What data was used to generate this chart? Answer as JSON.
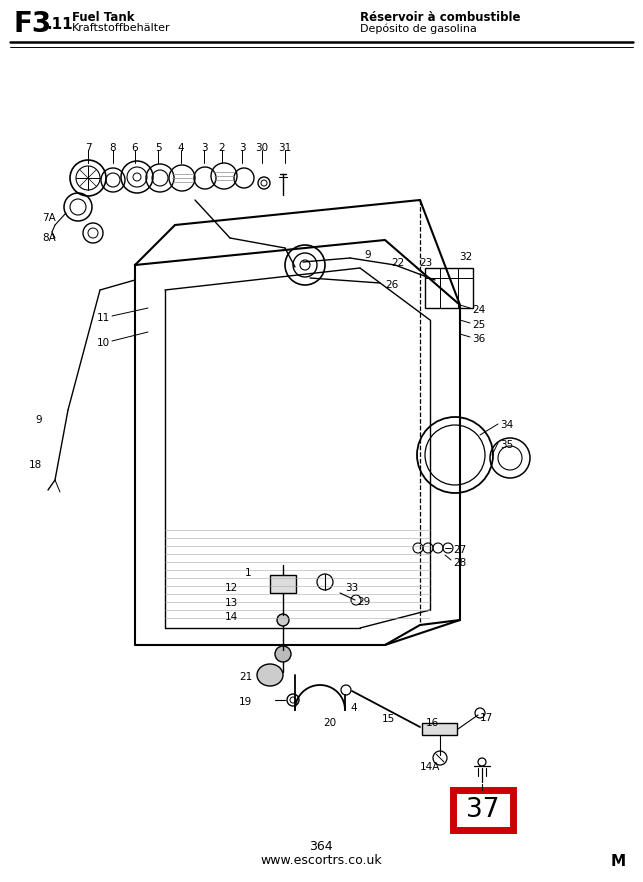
{
  "title_f3": "F3",
  "title_11": ".11",
  "title_fuel_tank": "Fuel Tank",
  "title_kraftstoff": "Kraftstoffbehälter",
  "title_reservoir": "Réservoir à combustible",
  "title_deposito": "Depósito de gasolina",
  "page_number": "364",
  "website": "www.escortrs.co.uk",
  "watermark": "M",
  "highlight_number": "37",
  "highlight_color": "#cc0000",
  "bg_color": "#ffffff",
  "line_color": "#000000",
  "fig_width": 6.43,
  "fig_height": 8.82,
  "dpi": 100
}
